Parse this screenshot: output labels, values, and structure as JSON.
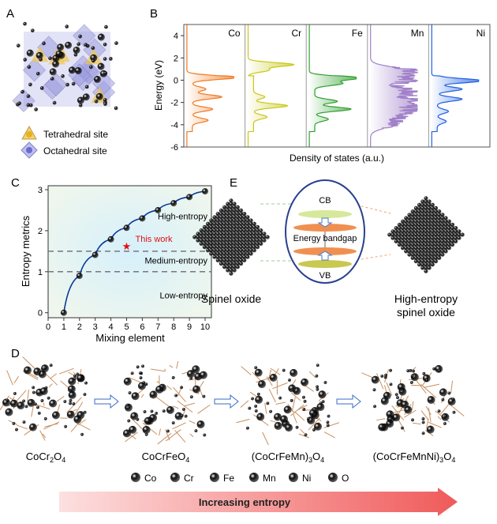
{
  "panels": {
    "a": {
      "label": "A",
      "legend": [
        {
          "text": "Tetrahedral site",
          "icon": "tetrahedral-site-icon",
          "color": "#e8b020"
        },
        {
          "text": "Octahedral site",
          "icon": "octahedral-site-icon",
          "color": "#6a6ad0"
        }
      ]
    },
    "b": {
      "label": "B"
    },
    "c": {
      "label": "C"
    },
    "d": {
      "label": "D",
      "compounds": [
        {
          "base": "CoCr",
          "sub": "2",
          "rest": "O",
          "sub2": "4",
          "pre": ""
        },
        {
          "base": "CoCrFeO",
          "sub": "4",
          "rest": "",
          "sub2": "",
          "pre": ""
        },
        {
          "pre": "(CoCrFeMn)",
          "base": "",
          "sub": "3",
          "rest": "O",
          "sub2": "4"
        },
        {
          "pre": "(CoCrFeMnNi)",
          "base": "",
          "sub": "3",
          "rest": "O",
          "sub2": "4"
        }
      ],
      "legend": [
        {
          "el": "Co",
          "color": "#6cd06c"
        },
        {
          "el": "Cr",
          "color": "#f0b0e0"
        },
        {
          "el": "Fe",
          "color": "#3a9ee8"
        },
        {
          "el": "Mn",
          "color": "#e06030"
        },
        {
          "el": "Ni",
          "color": "#9050d0"
        },
        {
          "el": "O",
          "color": "#d8b060"
        }
      ],
      "arrow_label": "Increasing entropy"
    },
    "e": {
      "label": "E",
      "left_label": "Spinel oxide",
      "right_label_1": "High-entropy",
      "right_label_2": "spinel oxide",
      "cb": "CB",
      "vb": "VB",
      "gap": "Energy  bandgap"
    }
  },
  "chart_data": [
    {
      "type": "line",
      "panel": "B",
      "xlabel": "Density of states (a.u.)",
      "ylabel": "Energy (eV)",
      "ylim": [
        -6,
        5
      ],
      "yticks": [
        "4",
        "2",
        "0",
        "-2",
        "-4",
        "-6"
      ],
      "series": [
        {
          "name": "Co",
          "color": "#f07a20",
          "peaks": [
            [
              0.25,
              1.0
            ],
            [
              -1.5,
              0.65
            ],
            [
              -2.6,
              0.45
            ],
            [
              -3.6,
              0.35
            ],
            [
              -0.8,
              0.3
            ]
          ]
        },
        {
          "name": "Cr",
          "color": "#c8c81a",
          "peaks": [
            [
              1.4,
              1.0
            ],
            [
              0.9,
              0.45
            ],
            [
              -2.3,
              0.75
            ],
            [
              -1.5,
              0.25
            ],
            [
              -3.3,
              0.3
            ]
          ]
        },
        {
          "name": "Fe",
          "color": "#30a030",
          "peaks": [
            [
              0.2,
              1.0
            ],
            [
              -0.3,
              0.6
            ],
            [
              -1.9,
              0.5
            ],
            [
              -2.6,
              0.8
            ],
            [
              -3.5,
              0.3
            ]
          ]
        },
        {
          "name": "Mn",
          "color": "#a080c8",
          "peaks": [
            [
              0.8,
              0.9
            ],
            [
              0.0,
              0.8
            ],
            [
              -1.0,
              0.85
            ],
            [
              -1.8,
              0.85
            ],
            [
              -2.6,
              0.8
            ],
            [
              -3.3,
              0.5
            ],
            [
              -4.0,
              0.45
            ]
          ]
        },
        {
          "name": "Ni",
          "color": "#2060e0",
          "peaks": [
            [
              -0.05,
              1.0
            ],
            [
              -0.8,
              0.55
            ],
            [
              -1.7,
              0.55
            ],
            [
              -2.8,
              0.25
            ],
            [
              -3.7,
              0.2
            ]
          ]
        }
      ]
    },
    {
      "type": "line",
      "panel": "C",
      "xlabel": "Mixing element",
      "ylabel": "Entropy metrics",
      "xlim": [
        0,
        10
      ],
      "ylim": [
        0,
        3
      ],
      "xticks": [
        "0",
        "1",
        "2",
        "3",
        "4",
        "5",
        "6",
        "7",
        "8",
        "9",
        "10"
      ],
      "yticks": [
        "0",
        "1",
        "2",
        "3"
      ],
      "x": [
        1,
        2,
        3,
        4,
        5,
        6,
        7,
        8,
        9,
        10
      ],
      "y": [
        0,
        0.9,
        1.41,
        1.79,
        2.07,
        2.3,
        2.5,
        2.67,
        2.82,
        2.96
      ],
      "line_color": "#0a3a9a",
      "thresholds": [
        1.0,
        1.5
      ],
      "regions": [
        "High-entropy",
        "Medium-entropy",
        "Low-entropy"
      ],
      "annotation": {
        "text": "This work",
        "x": 5,
        "y": 1.61,
        "color": "#e01010"
      }
    }
  ]
}
